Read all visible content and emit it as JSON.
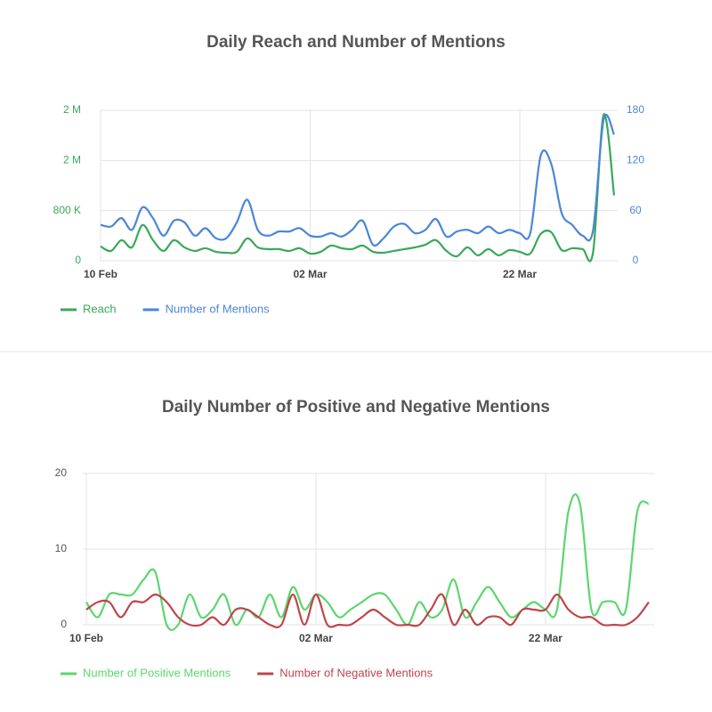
{
  "chart_data": [
    {
      "type": "line",
      "title": "Daily Reach and Number of Mentions",
      "categories": [
        "10 Feb",
        null,
        null,
        null,
        null,
        null,
        null,
        null,
        null,
        null,
        null,
        null,
        null,
        null,
        null,
        null,
        null,
        null,
        null,
        null,
        "02 Mar",
        null,
        null,
        null,
        null,
        null,
        null,
        null,
        null,
        null,
        null,
        null,
        null,
        null,
        null,
        null,
        null,
        null,
        null,
        null,
        "22 Mar",
        null,
        null,
        null,
        null,
        null,
        null,
        null,
        null,
        null
      ],
      "series": [
        {
          "name": "Reach",
          "color": "#3aa85a",
          "axis": "y",
          "values": [
            229000,
            157000,
            329000,
            214000,
            571000,
            329000,
            157000,
            329000,
            214000,
            157000,
            200000,
            143000,
            129000,
            143000,
            357000,
            214000,
            186000,
            186000,
            157000,
            200000,
            114000,
            143000,
            243000,
            200000,
            186000,
            243000,
            143000,
            129000,
            157000,
            186000,
            214000,
            257000,
            329000,
            157000,
            71000,
            214000,
            86000,
            186000,
            86000,
            171000,
            143000,
            114000,
            429000,
            457000,
            171000,
            200000,
            186000,
            143000,
            2329000,
            1043000
          ]
        },
        {
          "name": "Number of Mentions",
          "color": "#4a86d8",
          "axis": "y2",
          "values": [
            43,
            41,
            51,
            37,
            64,
            51,
            30,
            48,
            46,
            30,
            39,
            27,
            27,
            46,
            73,
            37,
            30,
            35,
            35,
            39,
            30,
            29,
            33,
            29,
            37,
            48,
            19,
            27,
            41,
            44,
            33,
            37,
            50,
            29,
            35,
            37,
            33,
            41,
            33,
            37,
            33,
            33,
            126,
            116,
            57,
            43,
            30,
            37,
            169,
            151
          ]
        }
      ],
      "ylim": [
        0,
        2400000
      ],
      "yticks": [
        0,
        {
          "value": 800000,
          "label": "800 K"
        },
        {
          "value": 1600000,
          "label": "2 M"
        },
        {
          "value": 2400000,
          "label": "2 M"
        }
      ],
      "y2lim": [
        0,
        180
      ],
      "y2ticks": [
        0,
        60,
        120,
        180
      ],
      "grid": true,
      "legend": "bottom-left"
    },
    {
      "type": "line",
      "title": "Daily Number of Positive and Negative Mentions",
      "categories": [
        "10 Feb",
        null,
        null,
        null,
        null,
        null,
        null,
        null,
        null,
        null,
        null,
        null,
        null,
        null,
        null,
        null,
        null,
        null,
        null,
        null,
        "02 Mar",
        null,
        null,
        null,
        null,
        null,
        null,
        null,
        null,
        null,
        null,
        null,
        null,
        null,
        null,
        null,
        null,
        null,
        null,
        null,
        "22 Mar",
        null,
        null,
        null,
        null,
        null,
        null,
        null,
        null,
        null
      ],
      "series": [
        {
          "name": "Number of Positive Mentions",
          "color": "#5cd66e",
          "axis": "y",
          "values": [
            3,
            1,
            4,
            4,
            4,
            6,
            7,
            0,
            0,
            4,
            1,
            2,
            4,
            0,
            2,
            1,
            4,
            1,
            5,
            2,
            4,
            3,
            1,
            2,
            3,
            4,
            4,
            2,
            0,
            3,
            1,
            2,
            6,
            1,
            3,
            5,
            3,
            1,
            2,
            3,
            2,
            2,
            15,
            16,
            2,
            3,
            3,
            2,
            15,
            16
          ]
        },
        {
          "name": "Number of Negative Mentions",
          "color": "#c0444b",
          "axis": "y",
          "values": [
            2,
            3,
            3,
            1,
            3,
            3,
            4,
            3,
            1,
            0,
            0,
            1,
            0,
            2,
            2,
            1,
            0,
            0,
            4,
            0,
            4,
            0,
            0,
            0,
            1,
            2,
            1,
            0,
            0,
            0,
            2,
            4,
            0,
            2,
            0,
            1,
            1,
            0,
            2,
            2,
            2,
            4,
            2,
            1,
            1,
            0,
            0,
            0,
            1,
            3
          ]
        }
      ],
      "ylim": [
        0,
        20
      ],
      "yticks": [
        0,
        10,
        20
      ],
      "grid": true,
      "legend": "bottom-left"
    }
  ]
}
